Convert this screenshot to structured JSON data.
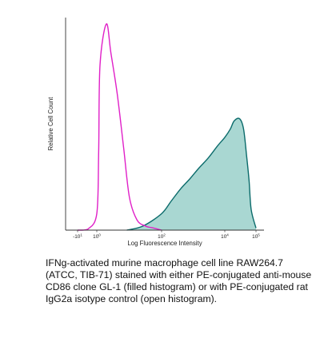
{
  "chart_data": {
    "type": "area",
    "title": "",
    "xlabel": "Log Fluorescence Intensity",
    "ylabel": "Relative Cell Count",
    "x_scale": "log (biexponential)",
    "xlim": [
      -10,
      100000
    ],
    "x_ticks": [
      {
        "base": "-10",
        "exp": "1"
      },
      {
        "base": "10",
        "exp": "0"
      },
      {
        "base": "10",
        "exp": "2"
      },
      {
        "base": "10",
        "exp": "4"
      },
      {
        "base": "10",
        "exp": "5"
      }
    ],
    "ylim": [
      0,
      100
    ],
    "grid": false,
    "legend": "none",
    "series": [
      {
        "style": "open",
        "color": "#e020c8",
        "x": [
          -10,
          -5,
          -2,
          0,
          0.5,
          1,
          2,
          3,
          5,
          8,
          12,
          20,
          35,
          60,
          100
        ],
        "y": [
          0,
          0,
          0.5,
          8,
          38,
          80,
          100,
          86,
          66,
          40,
          16,
          5,
          2,
          1,
          0
        ]
      },
      {
        "style": "filled",
        "color": "#0b6b6b",
        "fill": "#a9d7d2",
        "x": [
          10,
          30,
          100,
          200,
          400,
          800,
          1500,
          3000,
          6000,
          10000,
          15000,
          20000,
          30000,
          40000,
          50000,
          60000,
          70000,
          100000
        ],
        "y": [
          0,
          2,
          8,
          14,
          20,
          25,
          30,
          35,
          41,
          45,
          49,
          53,
          54,
          49,
          36,
          24,
          10,
          1
        ]
      }
    ]
  },
  "caption": "IFNg-activated murine macrophage cell line RAW264.7 (ATCC, TIB-71) stained with either PE-conjugated anti-mouse CD86 clone GL-1 (filled histogram) or with PE-conjugated rat IgG2a isotype control (open histogram)."
}
